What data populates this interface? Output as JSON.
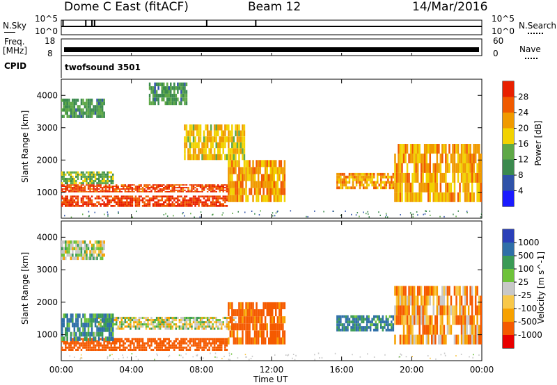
{
  "header": {
    "station": "Dome C East (fitACF)",
    "beam": "Beam 12",
    "date": "14/Mar/2016"
  },
  "panels": {
    "nsky_label": "N.Sky",
    "nsky_top": "10^5",
    "nsky_bottom": "10^0",
    "nsearch_label": "N.Search",
    "freq_label_1": "Freq.",
    "freq_label_2": "[MHz]",
    "freq_top": "18",
    "freq_bottom": "8",
    "nave_label": "Nave",
    "nave_top": "60",
    "nave_bottom": "0",
    "cpid_label": "CPID",
    "cpid_value": "twofsound 3501"
  },
  "colors": {
    "power_scale": [
      "#1a1aff",
      "#2f52a8",
      "#3b8a4e",
      "#5ea846",
      "#f2d200",
      "#f09a00",
      "#f05a00",
      "#e82000"
    ],
    "velocity_scale": [
      "#e80000",
      "#f55a00",
      "#f7a100",
      "#f8c84a",
      "#c8c8c8",
      "#6ec23a",
      "#3a9a55",
      "#2f6fa8",
      "#2a3fb8"
    ]
  },
  "chart_data": [
    {
      "type": "heatmap",
      "title": "",
      "xlabel": "",
      "ylabel": "Slant Range [km]",
      "x_ticks": [
        "00:00",
        "04:00",
        "08:00",
        "12:00",
        "16:00",
        "20:00",
        "00:00"
      ],
      "y_ticks": [
        "1000",
        "2000",
        "3000",
        "4000"
      ],
      "ylim": [
        200,
        4500
      ],
      "colorbar": {
        "label": "Power [dB]",
        "ticks": [
          "4",
          "8",
          "12",
          "16",
          "20",
          "24",
          "28"
        ],
        "range": [
          0,
          30
        ]
      },
      "echo_regions": [
        {
          "t_start_h": 0.0,
          "t_end_h": 9.7,
          "range_km": [
            1000,
            1250
          ],
          "level": 26
        },
        {
          "t_start_h": 0.0,
          "t_end_h": 9.5,
          "range_km": [
            550,
            900
          ],
          "level": 27
        },
        {
          "t_start_h": 0.0,
          "t_end_h": 3.0,
          "range_km": [
            1250,
            1650
          ],
          "level": 13
        },
        {
          "t_start_h": 9.5,
          "t_end_h": 12.8,
          "range_km": [
            700,
            2000
          ],
          "level": 20
        },
        {
          "t_start_h": 0.0,
          "t_end_h": 2.5,
          "range_km": [
            3300,
            3900
          ],
          "level": 11
        },
        {
          "t_start_h": 5.0,
          "t_end_h": 7.2,
          "range_km": [
            3700,
            4400
          ],
          "level": 11
        },
        {
          "t_start_h": 7.0,
          "t_end_h": 10.5,
          "range_km": [
            2000,
            3100
          ],
          "level": 18
        },
        {
          "t_start_h": 15.7,
          "t_end_h": 19.0,
          "range_km": [
            1100,
            1600
          ],
          "level": 21
        },
        {
          "t_start_h": 19.0,
          "t_end_h": 24.0,
          "range_km": [
            700,
            2500
          ],
          "level": 20
        }
      ]
    },
    {
      "type": "heatmap",
      "title": "",
      "xlabel": "Time UT",
      "ylabel": "Slant Range [km]",
      "x_ticks": [
        "00:00",
        "04:00",
        "08:00",
        "12:00",
        "16:00",
        "20:00",
        "00:00"
      ],
      "y_ticks": [
        "1000",
        "2000",
        "3000",
        "4000"
      ],
      "ylim": [
        200,
        4500
      ],
      "colorbar": {
        "label": "Velocity [m s^-1]",
        "ticks": [
          "-1000",
          "-500",
          "-100",
          "-25",
          "25",
          "100",
          "500",
          "1000"
        ],
        "range": [
          -1000,
          1000
        ]
      },
      "echo_regions": [
        {
          "t_start_h": 0.0,
          "t_end_h": 9.5,
          "range_km": [
            500,
            900
          ],
          "level": -300
        },
        {
          "t_start_h": 2.0,
          "t_end_h": 10.0,
          "range_km": [
            1150,
            1550
          ],
          "level": 0
        },
        {
          "t_start_h": 0.0,
          "t_end_h": 3.0,
          "range_km": [
            800,
            1650
          ],
          "level": 100
        },
        {
          "t_start_h": 9.5,
          "t_end_h": 12.8,
          "range_km": [
            700,
            2000
          ],
          "level": -150
        },
        {
          "t_start_h": 0.0,
          "t_end_h": 2.5,
          "range_km": [
            3300,
            3900
          ],
          "level": 0
        },
        {
          "t_start_h": 15.7,
          "t_end_h": 19.0,
          "range_km": [
            1100,
            1600
          ],
          "level": 120
        },
        {
          "t_start_h": 19.0,
          "t_end_h": 24.0,
          "range_km": [
            700,
            2500
          ],
          "level": -80
        }
      ]
    }
  ]
}
